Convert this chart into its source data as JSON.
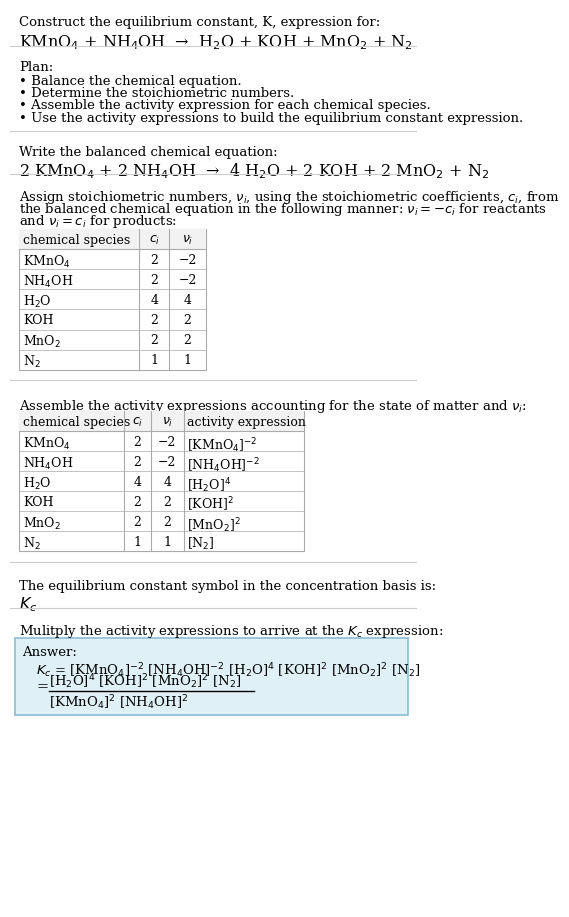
{
  "title_line1": "Construct the equilibrium constant, K, expression for:",
  "title_line2": "KMnO$_4$ + NH$_4$OH  →  H$_2$O + KOH + MnO$_2$ + N$_2$",
  "plan_header": "Plan:",
  "plan_items": [
    "• Balance the chemical equation.",
    "• Determine the stoichiometric numbers.",
    "• Assemble the activity expression for each chemical species.",
    "• Use the activity expressions to build the equilibrium constant expression."
  ],
  "balanced_header": "Write the balanced chemical equation:",
  "balanced_eq": "2 KMnO$_4$ + 2 NH$_4$OH  →  4 H$_2$O + 2 KOH + 2 MnO$_2$ + N$_2$",
  "assign_text_lines": [
    "Assign stoichiometric numbers, $\\nu_i$, using the stoichiometric coefficients, $c_i$, from",
    "the balanced chemical equation in the following manner: $\\nu_i = -c_i$ for reactants",
    "and $\\nu_i = c_i$ for products:"
  ],
  "table1_headers": [
    "chemical species",
    "$c_i$",
    "$\\nu_i$"
  ],
  "table1_rows": [
    [
      "KMnO$_4$",
      "2",
      "−2"
    ],
    [
      "NH$_4$OH",
      "2",
      "−2"
    ],
    [
      "H$_2$O",
      "4",
      "4"
    ],
    [
      "KOH",
      "2",
      "2"
    ],
    [
      "MnO$_2$",
      "2",
      "2"
    ],
    [
      "N$_2$",
      "1",
      "1"
    ]
  ],
  "assemble_text": "Assemble the activity expressions accounting for the state of matter and $\\nu_i$:",
  "table2_headers": [
    "chemical species",
    "$c_i$",
    "$\\nu_i$",
    "activity expression"
  ],
  "table2_rows": [
    [
      "KMnO$_4$",
      "2",
      "−2",
      "[KMnO$_4$]$^{-2}$"
    ],
    [
      "NH$_4$OH",
      "2",
      "−2",
      "[NH$_4$OH]$^{-2}$"
    ],
    [
      "H$_2$O",
      "4",
      "4",
      "[H$_2$O]$^4$"
    ],
    [
      "KOH",
      "2",
      "2",
      "[KOH]$^2$"
    ],
    [
      "MnO$_2$",
      "2",
      "2",
      "[MnO$_2$]$^2$"
    ],
    [
      "N$_2$",
      "1",
      "1",
      "[N$_2$]"
    ]
  ],
  "kc_symbol_text": "The equilibrium constant symbol in the concentration basis is:",
  "kc_symbol": "$K_c$",
  "multiply_text": "Mulitply the activity expressions to arrive at the $K_c$ expression:",
  "answer_label": "Answer:",
  "answer_line1": "$K_c$ = [KMnO$_4$]$^{-2}$ [NH$_4$OH]$^{-2}$ [H$_2$O]$^4$ [KOH]$^2$ [MnO$_2$]$^2$ [N$_2$]",
  "answer_eq_sign": "=",
  "answer_line2_num": "[H$_2$O]$^4$ [KOH]$^2$ [MnO$_2$]$^2$ [N$_2$]",
  "answer_line2_den": "[KMnO$_4$]$^2$ [NH$_4$OH]$^2$",
  "bg_color": "#ffffff",
  "table_border_color": "#aaaaaa",
  "answer_box_fill": "#dff0f7",
  "answer_box_border": "#8bbdd4",
  "text_color": "#000000",
  "font_size": 9.5,
  "line_color": "#cccccc"
}
